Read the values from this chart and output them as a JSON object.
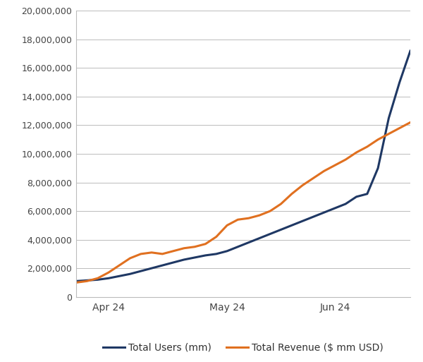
{
  "total_users": [
    1100000,
    1150000,
    1200000,
    1300000,
    1450000,
    1600000,
    1800000,
    2000000,
    2200000,
    2400000,
    2600000,
    2750000,
    2900000,
    3000000,
    3200000,
    3500000,
    3800000,
    4100000,
    4400000,
    4700000,
    5000000,
    5300000,
    5600000,
    5900000,
    6200000,
    6500000,
    7000000,
    7200000,
    9000000,
    12500000,
    15000000,
    17200000
  ],
  "total_revenue": [
    1000000,
    1100000,
    1300000,
    1700000,
    2200000,
    2700000,
    3000000,
    3100000,
    3000000,
    3200000,
    3400000,
    3500000,
    3700000,
    4200000,
    5000000,
    5400000,
    5500000,
    5700000,
    6000000,
    6500000,
    7200000,
    7800000,
    8300000,
    8800000,
    9200000,
    9600000,
    10100000,
    10500000,
    11000000,
    11400000,
    11800000,
    12200000
  ],
  "n_points": 32,
  "xtick_positions": [
    3,
    14,
    24
  ],
  "xtick_labels": [
    "Apr 24",
    "May 24",
    "Jun 24"
  ],
  "ylim": [
    0,
    20000000
  ],
  "yticks": [
    0,
    2000000,
    4000000,
    6000000,
    8000000,
    10000000,
    12000000,
    14000000,
    16000000,
    18000000,
    20000000
  ],
  "users_color": "#1F3864",
  "revenue_color": "#E07020",
  "users_label": "Total Users (mm)",
  "revenue_label": "Total Revenue ($ mm USD)",
  "line_width": 2.2,
  "bg_color": "#FFFFFF",
  "grid_color": "#BBBBBB",
  "tick_fontsize": 9,
  "legend_fontsize": 10
}
